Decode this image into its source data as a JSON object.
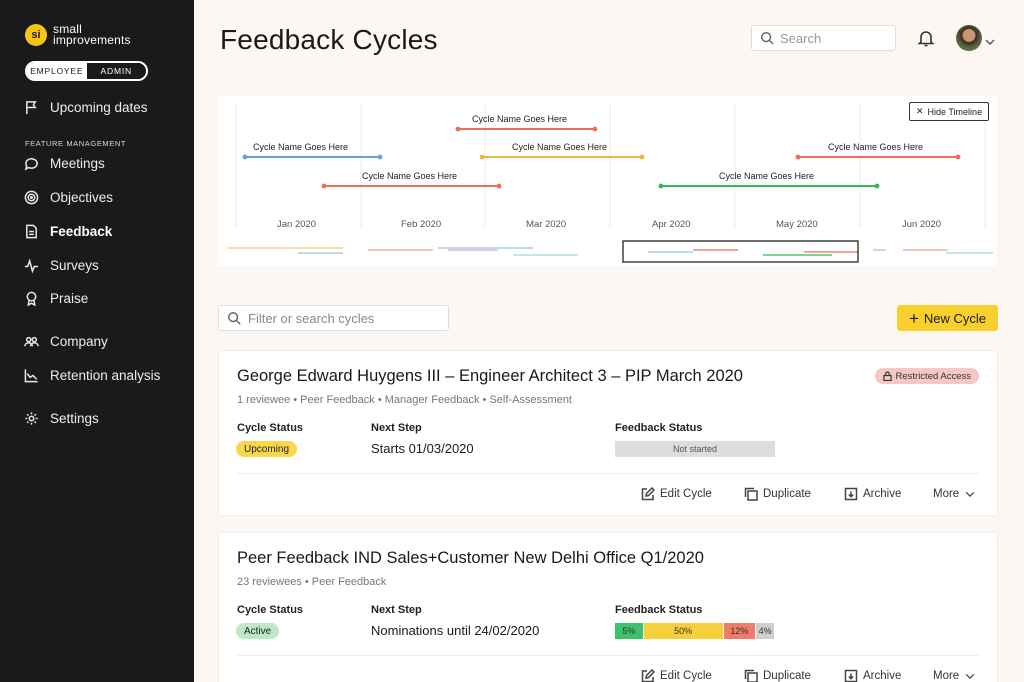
{
  "brand": {
    "name_line1": "small",
    "name_line2": "improvements",
    "mark": "si"
  },
  "mode_toggle": {
    "employee": "EMPLOYEE",
    "admin": "ADMIN"
  },
  "sidebar": {
    "top_item": {
      "label": "Upcoming dates",
      "icon": "flag-icon"
    },
    "section_label": "FEATURE MANAGEMENT",
    "items": [
      {
        "label": "Meetings",
        "icon": "chat-icon"
      },
      {
        "label": "Objectives",
        "icon": "target-icon"
      },
      {
        "label": "Feedback",
        "icon": "document-icon",
        "active": true
      },
      {
        "label": "Surveys",
        "icon": "pulse-icon"
      },
      {
        "label": "Praise",
        "icon": "award-icon"
      },
      {
        "label": "Company",
        "icon": "people-icon"
      },
      {
        "label": "Retention analysis",
        "icon": "chart-icon"
      },
      {
        "label": "Settings",
        "icon": "gear-icon"
      }
    ]
  },
  "header": {
    "title": "Feedback Cycles",
    "search_placeholder": "Search"
  },
  "timeline": {
    "hide_label": "Hide Timeline",
    "months": [
      "Jan 2020",
      "Feb 2020",
      "Mar 2020",
      "Apr 2020",
      "May 2020",
      "Jun 2020"
    ],
    "cycles": [
      {
        "name": "Cycle Name Goes Here",
        "color": "#ea6e5a"
      },
      {
        "name": "Cycle Name Goes Here",
        "color": "#5fa3e0"
      },
      {
        "name": "Cycle Name Goes Here",
        "color": "#f0b44c"
      },
      {
        "name": "Cycle Name Goes Here",
        "color": "#ea6e5a"
      },
      {
        "name": "Cycle Name Goes Here",
        "color": "#ea6e5a"
      },
      {
        "name": "Cycle Name Goes Here",
        "color": "#36b75a"
      }
    ]
  },
  "filter": {
    "placeholder": "Filter or search cycles"
  },
  "new_cycle_button": "New Cycle",
  "cards": [
    {
      "title": "George Edward Huygens III – Engineer Architect 3 – PIP March 2020",
      "meta": "1 reviewee • Peer Feedback • Manager Feedback • Self-Assessment",
      "restricted": "Restricted Access",
      "cycle_status_label": "Cycle Status",
      "cycle_status": "Upcoming",
      "next_step_label": "Next Step",
      "next_step": "Starts 01/03/2020",
      "feedback_status_label": "Feedback Status",
      "feedback_status": [
        {
          "label": "Not started",
          "percent": 100,
          "color": "#dddddd"
        }
      ],
      "actions": {
        "edit": "Edit Cycle",
        "duplicate": "Duplicate",
        "archive": "Archive",
        "more": "More"
      }
    },
    {
      "title": "Peer Feedback IND Sales+Customer New Delhi Office Q1/2020",
      "meta": "23 reviewees • Peer Feedback",
      "cycle_status_label": "Cycle Status",
      "cycle_status": "Active",
      "next_step_label": "Next Step",
      "next_step": "Nominations until 24/02/2020",
      "feedback_status_label": "Feedback Status",
      "feedback_status": [
        {
          "label": "5%",
          "percent": 5,
          "color": "#3cc36a"
        },
        {
          "label": "50%",
          "percent": 50,
          "color": "#f6d03b"
        },
        {
          "label": "12%",
          "percent": 12,
          "color": "#ef7b6a"
        },
        {
          "label": "4%",
          "percent": 4,
          "color": "#cfcfcf"
        }
      ],
      "actions": {
        "edit": "Edit Cycle",
        "duplicate": "Duplicate",
        "archive": "Archive",
        "more": "More"
      }
    }
  ],
  "colors": {
    "accent": "#f8cf2c",
    "sidebar_bg": "#1a1a1a",
    "page_bg": "#fcf7f3",
    "upcoming": "#f8d84a",
    "active": "#bfe8c8",
    "restricted": "#f6c7c7"
  }
}
